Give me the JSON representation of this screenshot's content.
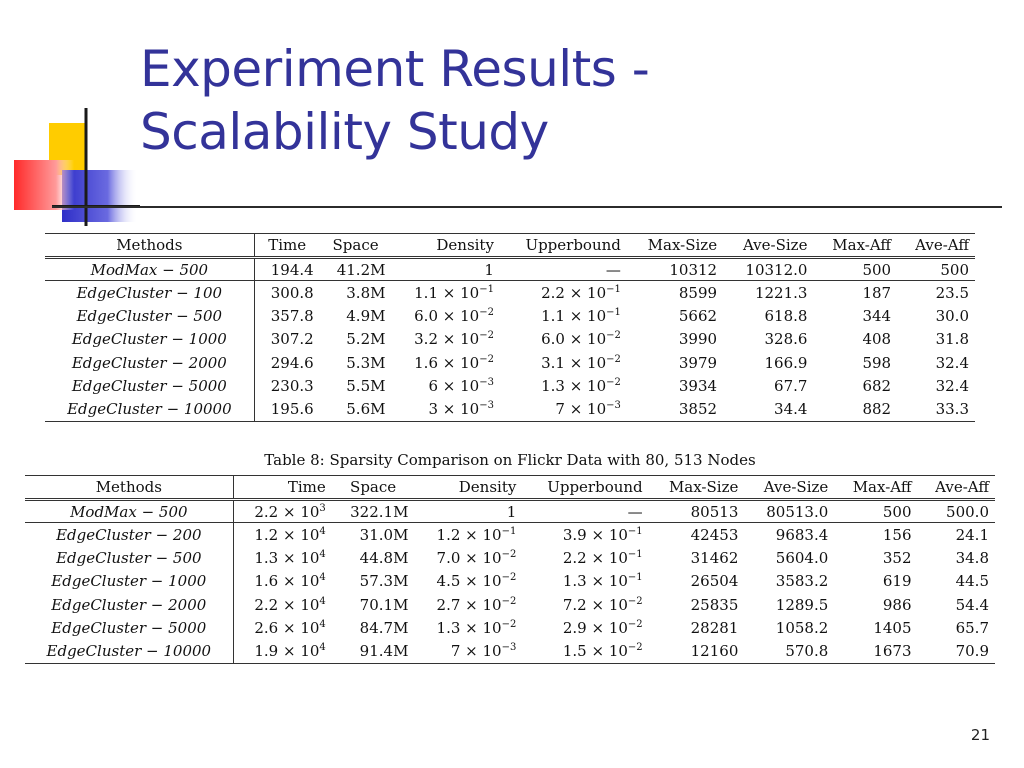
{
  "slide": {
    "title_line1": "Experiment Results -",
    "title_line2": "Scalability Study",
    "page_number": "21"
  },
  "colors": {
    "title": "#333399",
    "deco_yellow": "#ffcc00",
    "deco_blue": "#3333cc",
    "deco_red": "#ff3333"
  },
  "table1": {
    "columns": [
      "Methods",
      "Time",
      "Space",
      "Density",
      "Upperbound",
      "Max-Size",
      "Ave-Size",
      "Max-Aff",
      "Ave-Aff"
    ],
    "rows": [
      {
        "method": "ModMax − 500",
        "time": "194.4",
        "space": "41.2M",
        "density": "1",
        "upperbound": "—",
        "max_size": "10312",
        "ave_size": "10312.0",
        "max_aff": "500",
        "ave_aff": "500"
      },
      {
        "method": "EdgeCluster − 100",
        "time": "300.8",
        "space": "3.8M",
        "density_m": "1.1 × 10",
        "density_e": "−1",
        "upper_m": "2.2 × 10",
        "upper_e": "−1",
        "max_size": "8599",
        "ave_size": "1221.3",
        "max_aff": "187",
        "ave_aff": "23.5"
      },
      {
        "method": "EdgeCluster − 500",
        "time": "357.8",
        "space": "4.9M",
        "density_m": "6.0 × 10",
        "density_e": "−2",
        "upper_m": "1.1 × 10",
        "upper_e": "−1",
        "max_size": "5662",
        "ave_size": "618.8",
        "max_aff": "344",
        "ave_aff": "30.0"
      },
      {
        "method": "EdgeCluster − 1000",
        "time": "307.2",
        "space": "5.2M",
        "density_m": "3.2 × 10",
        "density_e": "−2",
        "upper_m": "6.0 × 10",
        "upper_e": "−2",
        "max_size": "3990",
        "ave_size": "328.6",
        "max_aff": "408",
        "ave_aff": "31.8"
      },
      {
        "method": "EdgeCluster − 2000",
        "time": "294.6",
        "space": "5.3M",
        "density_m": "1.6 × 10",
        "density_e": "−2",
        "upper_m": "3.1 × 10",
        "upper_e": "−2",
        "max_size": "3979",
        "ave_size": "166.9",
        "max_aff": "598",
        "ave_aff": "32.4"
      },
      {
        "method": "EdgeCluster − 5000",
        "time": "230.3",
        "space": "5.5M",
        "density_m": "6 × 10",
        "density_e": "−3",
        "upper_m": "1.3 × 10",
        "upper_e": "−2",
        "max_size": "3934",
        "ave_size": "67.7",
        "max_aff": "682",
        "ave_aff": "32.4"
      },
      {
        "method": "EdgeCluster − 10000",
        "time": "195.6",
        "space": "5.6M",
        "density_m": "3 × 10",
        "density_e": "−3",
        "upper_m": "7 × 10",
        "upper_e": "−3",
        "max_size": "3852",
        "ave_size": "34.4",
        "max_aff": "882",
        "ave_aff": "33.3"
      }
    ]
  },
  "table2": {
    "caption": "Table 8: Sparsity Comparison on Flickr Data with 80, 513 Nodes",
    "columns": [
      "Methods",
      "Time",
      "Space",
      "Density",
      "Upperbound",
      "Max-Size",
      "Ave-Size",
      "Max-Aff",
      "Ave-Aff"
    ],
    "rows": [
      {
        "method": "ModMax − 500",
        "time_m": "2.2 × 10",
        "time_e": "3",
        "space": "322.1M",
        "density": "1",
        "upperbound": "—",
        "max_size": "80513",
        "ave_size": "80513.0",
        "max_aff": "500",
        "ave_aff": "500.0"
      },
      {
        "method": "EdgeCluster − 200",
        "time_m": "1.2 × 10",
        "time_e": "4",
        "space": "31.0M",
        "density_m": "1.2 × 10",
        "density_e": "−1",
        "upper_m": "3.9 × 10",
        "upper_e": "−1",
        "max_size": "42453",
        "ave_size": "9683.4",
        "max_aff": "156",
        "ave_aff": "24.1"
      },
      {
        "method": "EdgeCluster − 500",
        "time_m": "1.3 × 10",
        "time_e": "4",
        "space": "44.8M",
        "density_m": "7.0 × 10",
        "density_e": "−2",
        "upper_m": "2.2 × 10",
        "upper_e": "−1",
        "max_size": "31462",
        "ave_size": "5604.0",
        "max_aff": "352",
        "ave_aff": "34.8"
      },
      {
        "method": "EdgeCluster − 1000",
        "time_m": "1.6 × 10",
        "time_e": "4",
        "space": "57.3M",
        "density_m": "4.5 × 10",
        "density_e": "−2",
        "upper_m": "1.3 × 10",
        "upper_e": "−1",
        "max_size": "26504",
        "ave_size": "3583.2",
        "max_aff": "619",
        "ave_aff": "44.5"
      },
      {
        "method": "EdgeCluster − 2000",
        "time_m": "2.2 × 10",
        "time_e": "4",
        "space": "70.1M",
        "density_m": "2.7 × 10",
        "density_e": "−2",
        "upper_m": "7.2 × 10",
        "upper_e": "−2",
        "max_size": "25835",
        "ave_size": "1289.5",
        "max_aff": "986",
        "ave_aff": "54.4"
      },
      {
        "method": "EdgeCluster − 5000",
        "time_m": "2.6 × 10",
        "time_e": "4",
        "space": "84.7M",
        "density_m": "1.3 × 10",
        "density_e": "−2",
        "upper_m": "2.9 × 10",
        "upper_e": "−2",
        "max_size": "28281",
        "ave_size": "1058.2",
        "max_aff": "1405",
        "ave_aff": "65.7"
      },
      {
        "method": "EdgeCluster − 10000",
        "time_m": "1.9 × 10",
        "time_e": "4",
        "space": "91.4M",
        "density_m": "7 × 10",
        "density_e": "−3",
        "upper_m": "1.5 × 10",
        "upper_e": "−2",
        "max_size": "12160",
        "ave_size": "570.8",
        "max_aff": "1673",
        "ave_aff": "70.9"
      }
    ]
  }
}
